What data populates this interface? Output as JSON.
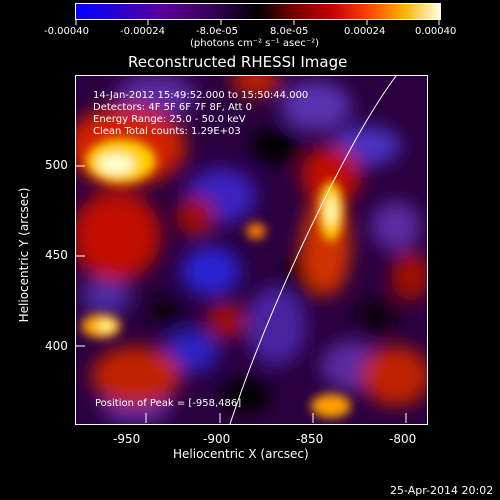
{
  "colorbar": {
    "tick_labels": [
      "-0.00040",
      "-0.00024",
      "-8.0e-05",
      "8.0e-05",
      "0.00024",
      "0.00040"
    ],
    "units": "(photons cm⁻² s⁻¹ asec⁻²)"
  },
  "image": {
    "title": "Reconstructed RHESSI Image",
    "info_lines": [
      "14-Jan-2012 15:49:52.000 to 15:50:44.000",
      "Detectors: 4F 5F 6F 7F 8F, Att 0",
      "Energy Range: 25.0 - 50.0 keV",
      "Clean    Total counts: 1.29E+03"
    ],
    "peak_text": "Position of Peak = [-958,486]",
    "xlabel": "Heliocentric X (arcsec)",
    "ylabel": "Heliocentric Y (arcsec)",
    "x_ticks": [
      "-950",
      "-900",
      "-850",
      "-800"
    ],
    "y_ticks": [
      "500",
      "450",
      "400"
    ],
    "colors": {
      "background": "#000000",
      "limb": "#ffffff",
      "peak": "#ffffe0",
      "trough": "#0000ff"
    }
  },
  "footer": {
    "date": "25-Apr-2014 20:02"
  }
}
